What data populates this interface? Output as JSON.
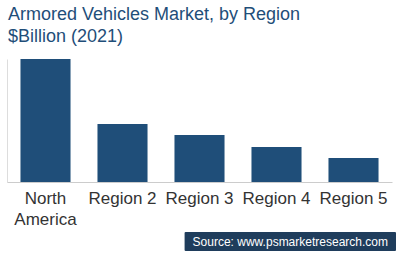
{
  "chart_data": {
    "type": "bar",
    "title": [
      "Armored Vehicles Market, by Region",
      "$Billion (2021)"
    ],
    "categories": [
      "North America",
      "Region 2",
      "Region 3",
      "Region 4",
      "Region 5"
    ],
    "values": [
      12.3,
      5.8,
      4.7,
      3.5,
      2.4
    ],
    "color": "#1f4e79",
    "ylim": [
      0,
      12.3
    ],
    "tick_labels": "x",
    "grid": false,
    "source": "Source: www.psmarketresearch.com"
  }
}
